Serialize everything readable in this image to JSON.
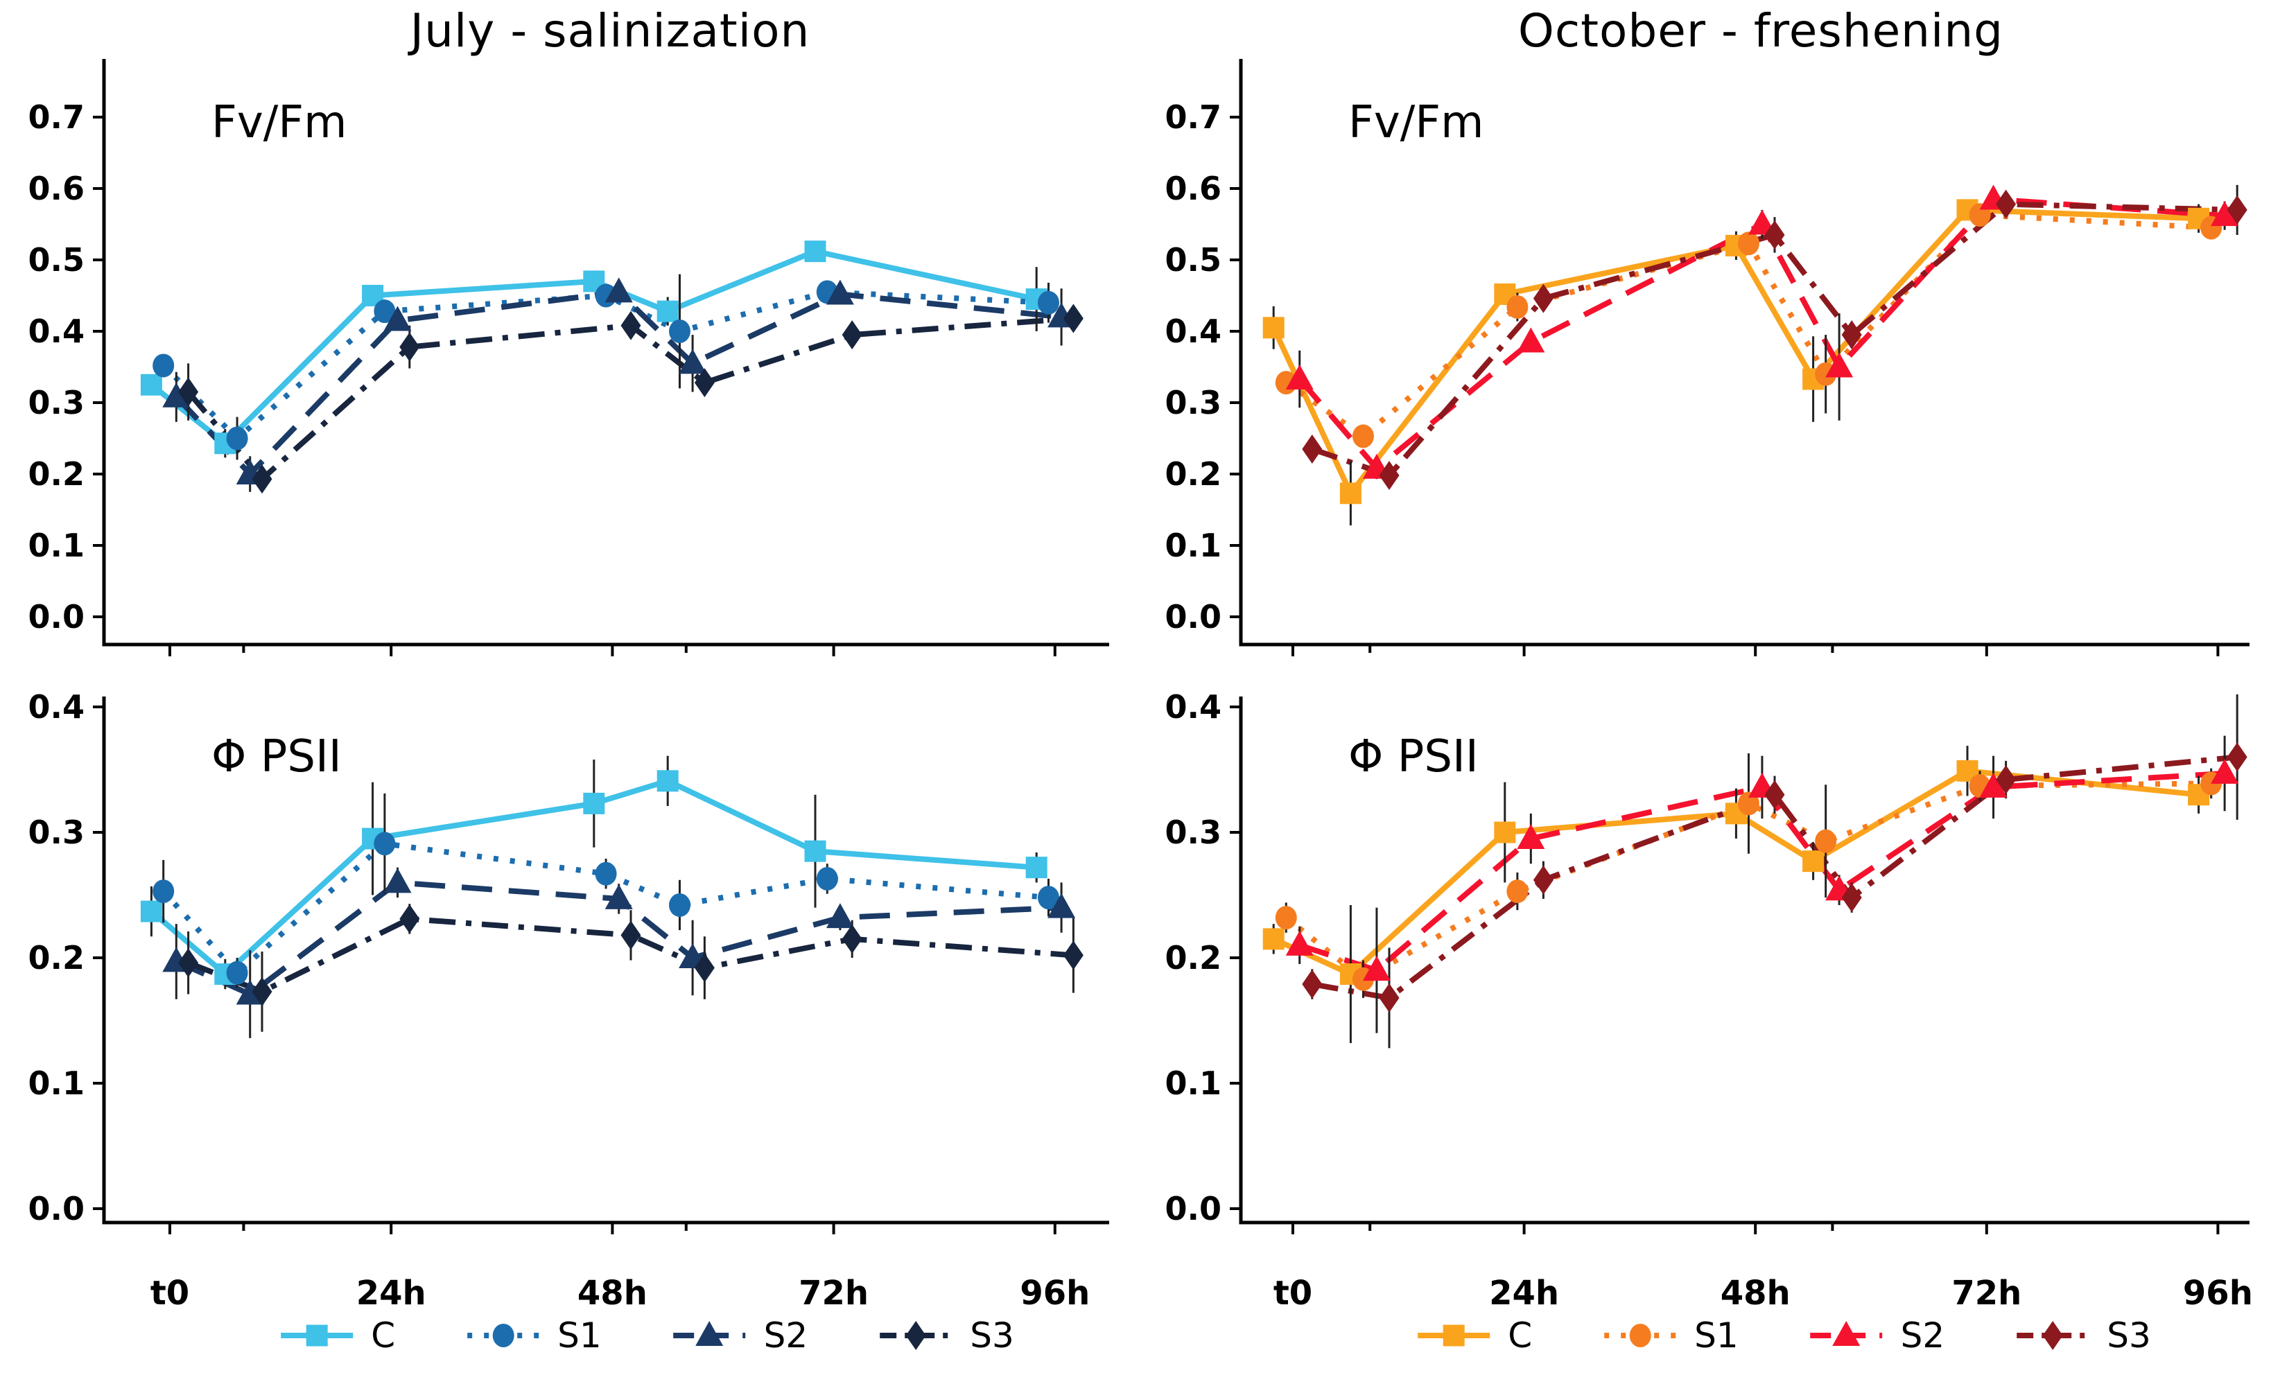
{
  "figure": {
    "background_color": "#ffffff",
    "axis_color": "#000000",
    "error_bar_color": "#222222",
    "y_axis_tick_format": "one_decimal"
  },
  "chart_data": [
    {
      "id": "july-fvfm",
      "type": "line",
      "title": "July - salinization",
      "panel_label": "Fv/Fm",
      "column": "left",
      "row": "top",
      "ylim": [
        0.0,
        0.7
      ],
      "ytick_step": 0.1,
      "ytick_labels": [
        "0.0",
        "0.1",
        "0.2",
        "0.3",
        "0.4",
        "0.5",
        "0.6",
        "0.7"
      ],
      "x_hours": [
        0,
        8,
        24,
        48,
        56,
        72,
        96
      ],
      "x_major_ticks": [
        {
          "hour": 0,
          "label": "t0"
        },
        {
          "hour": 24,
          "label": "24h"
        },
        {
          "hour": 48,
          "label": "48h"
        },
        {
          "hour": 72,
          "label": "72h"
        },
        {
          "hour": 96,
          "label": "96h"
        }
      ],
      "x_minor_ticks": [
        8,
        56
      ],
      "show_x_labels": false,
      "grid": false,
      "series": [
        {
          "name": "C",
          "color": "#3fc1e8",
          "marker": "square",
          "line": "solid",
          "values": [
            0.325,
            0.243,
            0.45,
            0.47,
            0.428,
            0.512,
            0.445
          ],
          "err": [
            0.012,
            0.02,
            0.012,
            0.015,
            0.02,
            0.012,
            0.045
          ]
        },
        {
          "name": "S1",
          "color": "#1c6dae",
          "marker": "circle",
          "line": "dotted",
          "values": [
            0.352,
            0.25,
            0.428,
            0.45,
            0.4,
            0.455,
            0.44
          ],
          "err": [
            0.01,
            0.03,
            0.015,
            0.012,
            0.08,
            0.015,
            0.028
          ]
        },
        {
          "name": "S2",
          "color": "#1b3a66",
          "marker": "triangle",
          "line": "dashed",
          "values": [
            0.308,
            0.2,
            0.415,
            0.455,
            0.355,
            0.452,
            0.42
          ],
          "err": [
            0.035,
            0.025,
            0.01,
            0.012,
            0.04,
            0.012,
            0.04
          ]
        },
        {
          "name": "S3",
          "color": "#17253e",
          "marker": "diamond",
          "line": "dashdot",
          "values": [
            0.315,
            0.193,
            0.378,
            0.408,
            0.328,
            0.395,
            0.418
          ],
          "err": [
            0.04,
            0.018,
            0.03,
            0.012,
            0.012,
            0.012,
            0.012
          ]
        }
      ]
    },
    {
      "id": "october-fvfm",
      "type": "line",
      "title": "October - freshening",
      "panel_label": "Fv/Fm",
      "column": "right",
      "row": "top",
      "ylim": [
        0.0,
        0.7
      ],
      "ytick_step": 0.1,
      "ytick_labels": [
        "0.0",
        "0.1",
        "0.2",
        "0.3",
        "0.4",
        "0.5",
        "0.6",
        "0.7"
      ],
      "x_hours": [
        0,
        8,
        24,
        48,
        56,
        72,
        96
      ],
      "x_major_ticks": [
        {
          "hour": 0,
          "label": "t0"
        },
        {
          "hour": 24,
          "label": "24h"
        },
        {
          "hour": 48,
          "label": "48h"
        },
        {
          "hour": 72,
          "label": "72h"
        },
        {
          "hour": 96,
          "label": "96h"
        }
      ],
      "x_minor_ticks": [
        8,
        56
      ],
      "show_x_labels": false,
      "grid": false,
      "series": [
        {
          "name": "C",
          "color": "#faa41e",
          "marker": "square",
          "line": "solid",
          "values": [
            0.405,
            0.173,
            0.452,
            0.52,
            0.333,
            0.57,
            0.558
          ],
          "err": [
            0.03,
            0.045,
            0.015,
            0.02,
            0.06,
            0.012,
            0.02
          ]
        },
        {
          "name": "S1",
          "color": "#f57d1f",
          "marker": "circle",
          "line": "dotted",
          "values": [
            0.328,
            0.253,
            0.434,
            0.523,
            0.34,
            0.563,
            0.545
          ],
          "err": [
            0.015,
            0.012,
            0.02,
            0.015,
            0.055,
            0.012,
            0.015
          ]
        },
        {
          "name": "S2",
          "color": "#f5122e",
          "marker": "triangle",
          "line": "dashed",
          "values": [
            0.333,
            0.208,
            0.385,
            0.55,
            0.35,
            0.585,
            0.562
          ],
          "err": [
            0.04,
            0.015,
            0.012,
            0.02,
            0.075,
            0.01,
            0.02
          ]
        },
        {
          "name": "S3",
          "color": "#8c191e",
          "marker": "diamond",
          "line": "dashdot",
          "values": [
            0.235,
            0.198,
            0.446,
            0.535,
            0.395,
            0.578,
            0.57
          ],
          "err": [
            0.012,
            0.015,
            0.012,
            0.025,
            0.015,
            0.012,
            0.035
          ]
        }
      ]
    },
    {
      "id": "july-psii",
      "type": "line",
      "title": "",
      "panel_label": "Φ PSII",
      "column": "left",
      "row": "bottom",
      "ylim": [
        0.0,
        0.4
      ],
      "ytick_step": 0.1,
      "ytick_labels": [
        "0.0",
        "0.1",
        "0.2",
        "0.3",
        "0.4"
      ],
      "x_hours": [
        0,
        8,
        24,
        48,
        56,
        72,
        96
      ],
      "x_major_ticks": [
        {
          "hour": 0,
          "label": "t0"
        },
        {
          "hour": 24,
          "label": "24h"
        },
        {
          "hour": 48,
          "label": "48h"
        },
        {
          "hour": 72,
          "label": "72h"
        },
        {
          "hour": 96,
          "label": "96h"
        }
      ],
      "x_minor_ticks": [
        8,
        56
      ],
      "show_x_labels": true,
      "grid": false,
      "series": [
        {
          "name": "C",
          "color": "#3fc1e8",
          "marker": "square",
          "line": "solid",
          "values": [
            0.237,
            0.187,
            0.295,
            0.323,
            0.341,
            0.285,
            0.272
          ],
          "err": [
            0.02,
            0.012,
            0.045,
            0.035,
            0.02,
            0.045,
            0.012
          ]
        },
        {
          "name": "S1",
          "color": "#1c6dae",
          "marker": "circle",
          "line": "dotted",
          "values": [
            0.253,
            0.188,
            0.291,
            0.267,
            0.242,
            0.263,
            0.248
          ],
          "err": [
            0.025,
            0.012,
            0.04,
            0.012,
            0.02,
            0.012,
            0.015
          ]
        },
        {
          "name": "S2",
          "color": "#1b3a66",
          "marker": "triangle",
          "line": "dashed",
          "values": [
            0.197,
            0.171,
            0.26,
            0.247,
            0.2,
            0.232,
            0.24
          ],
          "err": [
            0.03,
            0.035,
            0.012,
            0.012,
            0.03,
            0.01,
            0.02
          ]
        },
        {
          "name": "S3",
          "color": "#17253e",
          "marker": "diamond",
          "line": "dashdot",
          "values": [
            0.196,
            0.173,
            0.231,
            0.218,
            0.192,
            0.215,
            0.202
          ],
          "err": [
            0.025,
            0.032,
            0.012,
            0.02,
            0.025,
            0.015,
            0.03
          ]
        }
      ]
    },
    {
      "id": "october-psii",
      "type": "line",
      "title": "",
      "panel_label": "Φ PSII",
      "column": "right",
      "row": "bottom",
      "ylim": [
        0.0,
        0.4
      ],
      "ytick_step": 0.1,
      "ytick_labels": [
        "0.0",
        "0.1",
        "0.2",
        "0.3",
        "0.4"
      ],
      "x_hours": [
        0,
        8,
        24,
        48,
        56,
        72,
        96
      ],
      "x_major_ticks": [
        {
          "hour": 0,
          "label": "t0"
        },
        {
          "hour": 24,
          "label": "24h"
        },
        {
          "hour": 48,
          "label": "48h"
        },
        {
          "hour": 72,
          "label": "72h"
        },
        {
          "hour": 96,
          "label": "96h"
        }
      ],
      "x_minor_ticks": [
        8,
        56
      ],
      "show_x_labels": true,
      "grid": false,
      "series": [
        {
          "name": "C",
          "color": "#faa41e",
          "marker": "square",
          "line": "solid",
          "values": [
            0.215,
            0.187,
            0.3,
            0.315,
            0.277,
            0.349,
            0.33
          ],
          "err": [
            0.012,
            0.055,
            0.04,
            0.02,
            0.015,
            0.02,
            0.015
          ]
        },
        {
          "name": "S1",
          "color": "#f57d1f",
          "marker": "circle",
          "line": "dotted",
          "values": [
            0.232,
            0.183,
            0.253,
            0.323,
            0.293,
            0.337,
            0.339
          ],
          "err": [
            0.012,
            0.015,
            0.015,
            0.04,
            0.045,
            0.012,
            0.012
          ]
        },
        {
          "name": "S2",
          "color": "#f5122e",
          "marker": "triangle",
          "line": "dashed",
          "values": [
            0.21,
            0.19,
            0.295,
            0.336,
            0.254,
            0.336,
            0.347
          ],
          "err": [
            0.015,
            0.05,
            0.02,
            0.025,
            0.012,
            0.025,
            0.03
          ]
        },
        {
          "name": "S3",
          "color": "#8c191e",
          "marker": "diamond",
          "line": "dashdot",
          "values": [
            0.179,
            0.168,
            0.262,
            0.33,
            0.248,
            0.342,
            0.36
          ],
          "err": [
            0.012,
            0.04,
            0.015,
            0.015,
            0.012,
            0.015,
            0.05
          ]
        }
      ]
    }
  ]
}
